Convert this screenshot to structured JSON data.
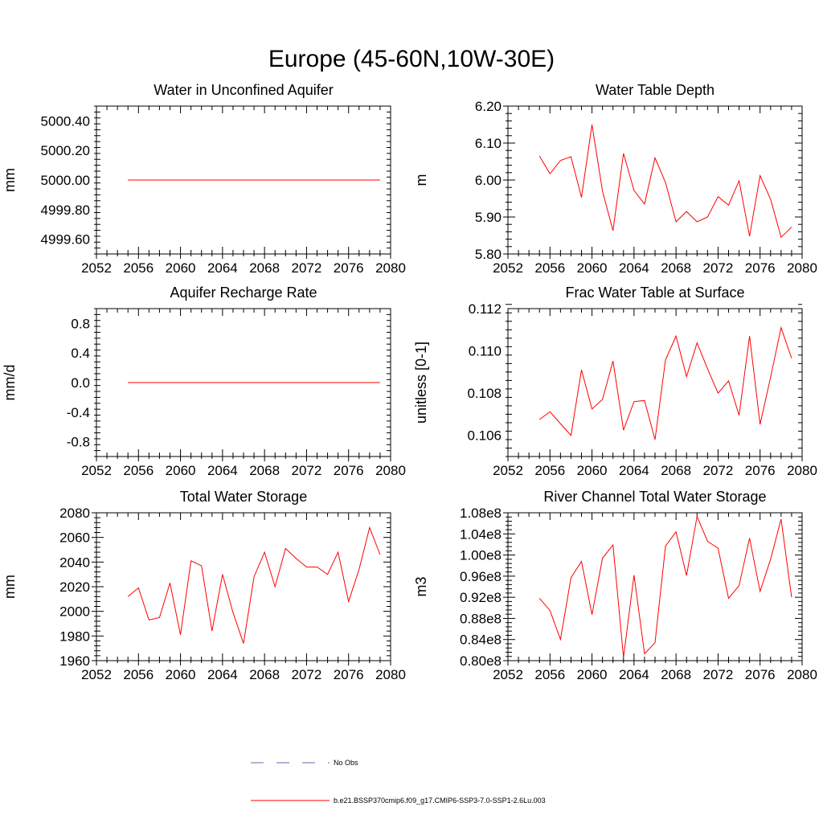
{
  "title": "Europe (45-60N,10W-30E)",
  "legend": {
    "obs_label": "No Obs",
    "model_label": "b.e21.BSSP370cmip6.f09_g17.CMIP6-SSP3-7.0-SSP1-2.6Lu.003"
  },
  "colors": {
    "model": "#ff0000",
    "obs": "#6a6aa8"
  },
  "chart_data": [
    {
      "type": "line",
      "title": "Water in Unconfined Aquifer",
      "ylabel": "mm",
      "xlim": [
        2052,
        2080
      ],
      "ylim": [
        4999.5,
        5000.5
      ],
      "xticks": [
        "2052",
        "2056",
        "2060",
        "2064",
        "2068",
        "2072",
        "2076",
        "2080"
      ],
      "yticks": [
        {
          "v": 5000.4,
          "label": "5000.40"
        },
        {
          "v": 5000.2,
          "label": "5000.20"
        },
        {
          "v": 5000.0,
          "label": "5000.00"
        },
        {
          "v": 4999.8,
          "label": "4999.80"
        },
        {
          "v": 4999.6,
          "label": "4999.60"
        }
      ],
      "x": [
        2055,
        2056,
        2057,
        2058,
        2059,
        2060,
        2061,
        2062,
        2063,
        2064,
        2065,
        2066,
        2067,
        2068,
        2069,
        2070,
        2071,
        2072,
        2073,
        2074,
        2075,
        2076,
        2077,
        2078,
        2079
      ],
      "values": [
        5000,
        5000,
        5000,
        5000,
        5000,
        5000,
        5000,
        5000,
        5000,
        5000,
        5000,
        5000,
        5000,
        5000,
        5000,
        5000,
        5000,
        5000,
        5000,
        5000,
        5000,
        5000,
        5000,
        5000,
        5000
      ]
    },
    {
      "type": "line",
      "title": "Water Table Depth",
      "ylabel": "m",
      "xlim": [
        2052,
        2080
      ],
      "ylim": [
        5.8,
        6.2
      ],
      "xticks": [
        "2052",
        "2056",
        "2060",
        "2064",
        "2068",
        "2072",
        "2076",
        "2080"
      ],
      "yticks": [
        {
          "v": 6.2,
          "label": "6.20"
        },
        {
          "v": 6.1,
          "label": "6.10"
        },
        {
          "v": 6.0,
          "label": "6.00"
        },
        {
          "v": 5.9,
          "label": "5.90"
        },
        {
          "v": 5.8,
          "label": "5.80"
        }
      ],
      "x": [
        2055,
        2056,
        2057,
        2058,
        2059,
        2060,
        2061,
        2062,
        2063,
        2064,
        2065,
        2066,
        2067,
        2068,
        2069,
        2070,
        2071,
        2072,
        2073,
        2074,
        2075,
        2076,
        2077,
        2078,
        2079
      ],
      "values": [
        6.065,
        6.017,
        6.053,
        6.063,
        5.953,
        6.15,
        5.97,
        5.863,
        6.072,
        5.972,
        5.935,
        6.06,
        5.993,
        5.887,
        5.915,
        5.887,
        5.9,
        5.955,
        5.932,
        5.998,
        5.848,
        6.012,
        5.948,
        5.845,
        5.873
      ]
    },
    {
      "type": "line",
      "title": "Aquifer Recharge Rate",
      "ylabel": "mm/d",
      "xlim": [
        2052,
        2080
      ],
      "ylim": [
        -1.0,
        1.0
      ],
      "xticks": [
        "2052",
        "2056",
        "2060",
        "2064",
        "2068",
        "2072",
        "2076",
        "2080"
      ],
      "yticks": [
        {
          "v": 0.8,
          "label": "0.8"
        },
        {
          "v": 0.4,
          "label": "0.4"
        },
        {
          "v": 0.0,
          "label": "0.0"
        },
        {
          "v": -0.4,
          "label": "-0.4"
        },
        {
          "v": -0.8,
          "label": "-0.8"
        }
      ],
      "x": [
        2055,
        2056,
        2057,
        2058,
        2059,
        2060,
        2061,
        2062,
        2063,
        2064,
        2065,
        2066,
        2067,
        2068,
        2069,
        2070,
        2071,
        2072,
        2073,
        2074,
        2075,
        2076,
        2077,
        2078,
        2079
      ],
      "values": [
        0,
        0,
        0,
        0,
        0,
        0,
        0,
        0,
        0,
        0,
        0,
        0,
        0,
        0,
        0,
        0,
        0,
        0,
        0,
        0,
        0,
        0,
        0,
        0,
        0
      ]
    },
    {
      "type": "line",
      "title": "Frac Water Table at Surface",
      "ylabel": "unitless [0-1]",
      "xlim": [
        2052,
        2080
      ],
      "ylim": [
        0.105,
        0.112
      ],
      "xticks": [
        "2052",
        "2056",
        "2060",
        "2064",
        "2068",
        "2072",
        "2076",
        "2080"
      ],
      "yticks": [
        {
          "v": 0.112,
          "label": "0.112"
        },
        {
          "v": 0.11,
          "label": "0.110"
        },
        {
          "v": 0.108,
          "label": "0.108"
        },
        {
          "v": 0.106,
          "label": "0.106"
        }
      ],
      "x": [
        2055,
        2056,
        2057,
        2058,
        2059,
        2060,
        2061,
        2062,
        2063,
        2064,
        2065,
        2066,
        2067,
        2068,
        2069,
        2070,
        2071,
        2072,
        2073,
        2074,
        2075,
        2076,
        2077,
        2078,
        2079
      ],
      "values": [
        0.10675,
        0.10712,
        0.10655,
        0.106,
        0.1091,
        0.10725,
        0.1077,
        0.10952,
        0.10625,
        0.1076,
        0.10765,
        0.1058,
        0.10958,
        0.1107,
        0.10878,
        0.11038,
        0.10915,
        0.108,
        0.10858,
        0.10695,
        0.1107,
        0.10652,
        0.10875,
        0.1111,
        0.10965
      ]
    },
    {
      "type": "line",
      "title": "Total Water Storage",
      "ylabel": "mm",
      "xlim": [
        2052,
        2080
      ],
      "ylim": [
        1960,
        2080
      ],
      "xticks": [
        "2052",
        "2056",
        "2060",
        "2064",
        "2068",
        "2072",
        "2076",
        "2080"
      ],
      "yticks": [
        {
          "v": 2080,
          "label": "2080"
        },
        {
          "v": 2060,
          "label": "2060"
        },
        {
          "v": 2040,
          "label": "2040"
        },
        {
          "v": 2020,
          "label": "2020"
        },
        {
          "v": 2000,
          "label": "2000"
        },
        {
          "v": 1980,
          "label": "1980"
        },
        {
          "v": 1960,
          "label": "1960"
        }
      ],
      "x": [
        2055,
        2056,
        2057,
        2058,
        2059,
        2060,
        2061,
        2062,
        2063,
        2064,
        2065,
        2066,
        2067,
        2068,
        2069,
        2070,
        2071,
        2072,
        2073,
        2074,
        2075,
        2076,
        2077,
        2078,
        2079
      ],
      "values": [
        2012,
        2019,
        1993,
        1995,
        2023,
        1981,
        2041,
        2037,
        1984,
        2030,
        1999,
        1974,
        2028,
        2048,
        2020,
        2051,
        2043,
        2036,
        2036,
        2030,
        2048,
        2008,
        2034,
        2068,
        2046
      ]
    },
    {
      "type": "line",
      "title": "River Channel Total Water Storage",
      "ylabel": "m3",
      "xlim": [
        2052,
        2080
      ],
      "ylim": [
        80000000.0,
        108000000.0
      ],
      "xticks": [
        "2052",
        "2056",
        "2060",
        "2064",
        "2068",
        "2072",
        "2076",
        "2080"
      ],
      "yticks": [
        {
          "v": 108000000,
          "label": "1.08e8"
        },
        {
          "v": 104000000,
          "label": "1.04e8"
        },
        {
          "v": 100000000,
          "label": "1.00e8"
        },
        {
          "v": 96000000,
          "label": "0.96e8"
        },
        {
          "v": 92000000,
          "label": "0.92e8"
        },
        {
          "v": 88000000,
          "label": "0.88e8"
        },
        {
          "v": 84000000,
          "label": "0.84e8"
        },
        {
          "v": 80000000,
          "label": "0.80e8"
        }
      ],
      "x": [
        2055,
        2056,
        2057,
        2058,
        2059,
        2060,
        2061,
        2062,
        2063,
        2064,
        2065,
        2066,
        2067,
        2068,
        2069,
        2070,
        2071,
        2072,
        2073,
        2074,
        2075,
        2076,
        2077,
        2078,
        2079
      ],
      "values": [
        91800000,
        89500000,
        84000000,
        95700000,
        98800000,
        88700000,
        99400000,
        101900000,
        80600000,
        96200000,
        81300000,
        83400000,
        101700000,
        104400000,
        96100000,
        107300000,
        102600000,
        101300000,
        91800000,
        94200000,
        103200000,
        93100000,
        99200000,
        106800000,
        92000000
      ]
    }
  ]
}
